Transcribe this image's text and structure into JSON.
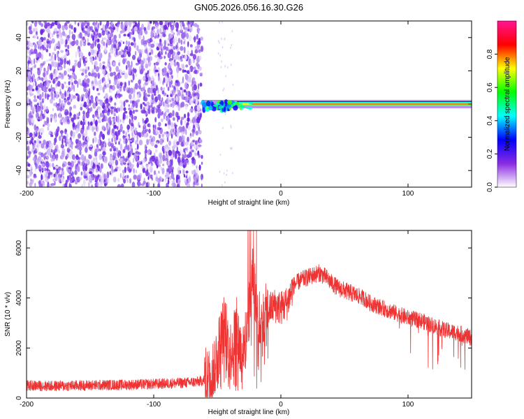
{
  "title": "GN05.2026.056.16.30.G26",
  "chart_data": [
    {
      "type": "heatmap",
      "title": "GN05.2026.056.16.30.G26",
      "xlabel": "Height of straight line (km)",
      "ylabel": "Frequency (Hz)",
      "xlim": [
        -200,
        150
      ],
      "ylim": [
        -50,
        50
      ],
      "xticks": [
        -200,
        -100,
        0,
        100
      ],
      "yticks": [
        -40,
        -20,
        0,
        20,
        40
      ],
      "x_tick_labels": [
        "-200",
        "-100",
        "0",
        "100"
      ],
      "y_tick_labels": [
        "-40",
        "-20",
        "0",
        "20",
        "40"
      ],
      "noise_region_x": [
        -200,
        -62
      ],
      "signal_frequency_hz": 0,
      "colorbar": {
        "label": "Normalized spectral amplitude",
        "range": [
          0,
          1
        ],
        "ticks": [
          0.0,
          0.2,
          0.4,
          0.6,
          0.8
        ],
        "tick_labels": [
          "0.0",
          "0.2",
          "0.4",
          "0.6",
          "0.8"
        ],
        "colormap": [
          "#ffffff",
          "#8a2be2",
          "#0000ff",
          "#00ffff",
          "#00ff00",
          "#ffff00",
          "#ff0000",
          "#ff1493"
        ]
      }
    },
    {
      "type": "line",
      "xlabel": "Height of straight line (km)",
      "ylabel": "SNR (10 * v/v)",
      "xlim": [
        -200,
        150
      ],
      "ylim": [
        0,
        6700
      ],
      "xticks": [
        -200,
        -100,
        0,
        100
      ],
      "yticks": [
        0,
        2000,
        4000,
        6000
      ],
      "x_tick_labels": [
        "-200",
        "-100",
        "0",
        "100"
      ],
      "y_tick_labels": [
        "0",
        "2000",
        "4000",
        "6000"
      ],
      "line_color": "#ee3333",
      "series": [
        {
          "name": "SNR",
          "x": [
            -200,
            -180,
            -160,
            -140,
            -120,
            -100,
            -80,
            -65,
            -55,
            -48,
            -44,
            -40,
            -35,
            -30,
            -25,
            -22,
            -18,
            -15,
            -10,
            -5,
            0,
            5,
            10,
            15,
            20,
            25,
            30,
            35,
            40,
            45,
            50,
            55,
            60,
            65,
            70,
            75,
            80,
            85,
            90,
            95,
            100,
            105,
            110,
            115,
            120,
            125,
            130,
            135,
            140,
            145,
            150
          ],
          "y": [
            500,
            480,
            500,
            520,
            530,
            560,
            600,
            650,
            800,
            2200,
            3000,
            1800,
            2800,
            1500,
            3600,
            4800,
            3200,
            2900,
            3500,
            3700,
            3600,
            3800,
            4500,
            4700,
            4800,
            4900,
            5000,
            4850,
            4600,
            4400,
            4300,
            4200,
            4100,
            4000,
            3800,
            3700,
            3600,
            3500,
            3400,
            3300,
            3200,
            3150,
            3100,
            3000,
            2900,
            2800,
            2700,
            2650,
            2600,
            2500,
            2400
          ]
        }
      ]
    }
  ]
}
